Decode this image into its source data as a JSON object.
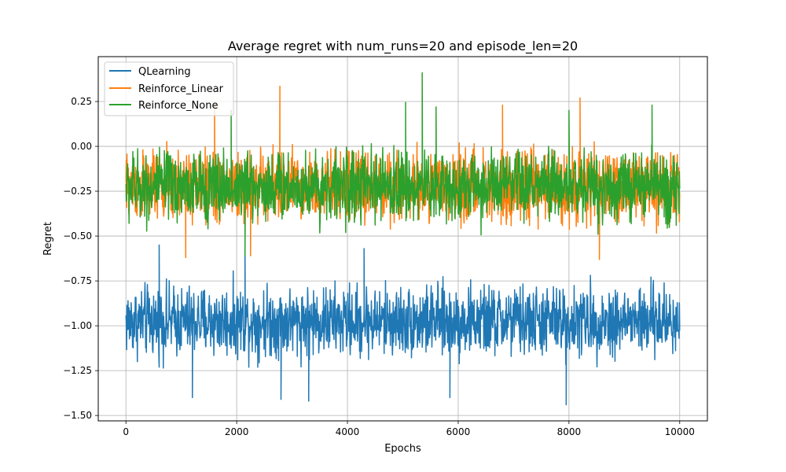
{
  "chart_data": {
    "type": "line",
    "title": "Average regret with num_runs=20 and episode_len=20",
    "xlabel": "Epochs",
    "ylabel": "Regret",
    "xlim": [
      -500,
      10500
    ],
    "ylim": [
      -1.53,
      0.5
    ],
    "x_range": [
      0,
      10000
    ],
    "xticks": [
      0,
      2000,
      4000,
      6000,
      8000,
      10000
    ],
    "xtick_labels": [
      "0",
      "2000",
      "4000",
      "6000",
      "8000",
      "10000"
    ],
    "yticks": [
      -1.5,
      -1.25,
      -1.0,
      -0.75,
      -0.5,
      -0.25,
      0.0,
      0.25
    ],
    "ytick_labels": [
      "−1.50",
      "−1.25",
      "−1.00",
      "−0.75",
      "−0.50",
      "−0.25",
      "0.00",
      "0.25"
    ],
    "grid": true,
    "legend_position": "top-left",
    "series": [
      {
        "name": "QLearning",
        "color": "#1f77b4",
        "typical_band": [
          -1.25,
          -0.7
        ],
        "extremes": [
          {
            "x": 7950,
            "y": -1.44
          },
          {
            "x": 3300,
            "y": -1.42
          },
          {
            "x": 2800,
            "y": -1.41
          },
          {
            "x": 5850,
            "y": -1.4
          },
          {
            "x": 1200,
            "y": -1.4
          },
          {
            "x": 600,
            "y": -0.55
          },
          {
            "x": 2150,
            "y": -0.56
          },
          {
            "x": 4300,
            "y": -0.57
          }
        ]
      },
      {
        "name": "Reinforce_Linear",
        "color": "#ff7f0e",
        "typical_band": [
          -0.5,
          0.05
        ],
        "extremes": [
          {
            "x": 2780,
            "y": 0.335
          },
          {
            "x": 8200,
            "y": 0.27
          },
          {
            "x": 1600,
            "y": 0.25
          },
          {
            "x": 6800,
            "y": 0.23
          },
          {
            "x": 8550,
            "y": -0.63
          },
          {
            "x": 1080,
            "y": -0.62
          },
          {
            "x": 2250,
            "y": -0.61
          }
        ]
      },
      {
        "name": "Reinforce_None",
        "color": "#2ca02c",
        "typical_band": [
          -0.5,
          0.05
        ],
        "extremes": [
          {
            "x": 5350,
            "y": 0.41
          },
          {
            "x": 5050,
            "y": 0.245
          },
          {
            "x": 1900,
            "y": 0.2
          },
          {
            "x": 9500,
            "y": 0.23
          },
          {
            "x": 5600,
            "y": 0.22
          },
          {
            "x": 8000,
            "y": 0.2
          },
          {
            "x": 2150,
            "y": -0.61
          }
        ]
      }
    ]
  }
}
